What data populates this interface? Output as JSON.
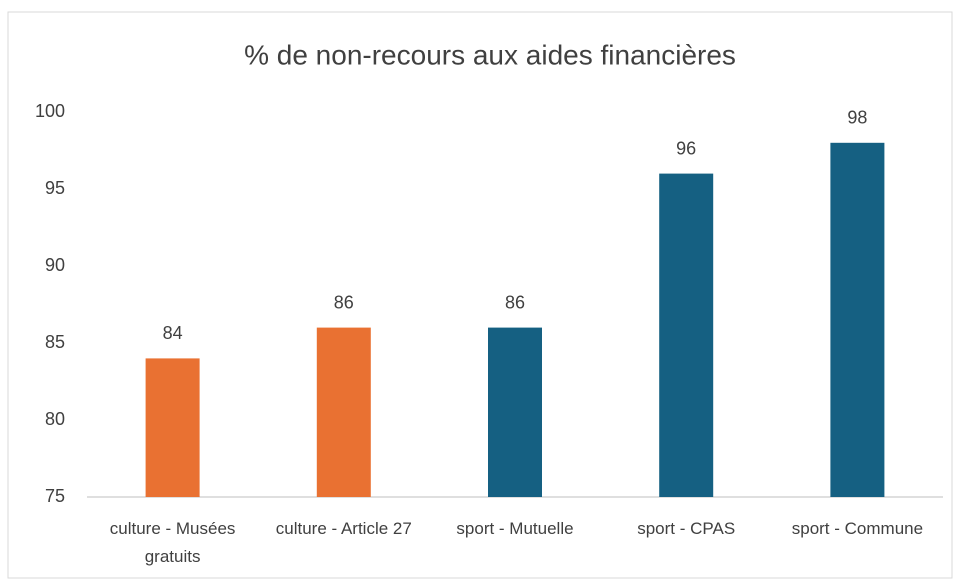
{
  "chart_data": {
    "type": "bar",
    "title": "% de non-recours aux aides financières",
    "categories": [
      "culture - Musées gratuits",
      "culture - Article 27",
      "sport - Mutuelle",
      "sport - CPAS",
      "sport - Commune"
    ],
    "values": [
      84,
      86,
      86,
      96,
      98
    ],
    "colors": [
      "#e97132",
      "#e97132",
      "#156082",
      "#156082",
      "#156082"
    ],
    "ylim": [
      75,
      100
    ],
    "yticks": [
      75,
      80,
      85,
      90,
      95,
      100
    ],
    "grid": false
  }
}
